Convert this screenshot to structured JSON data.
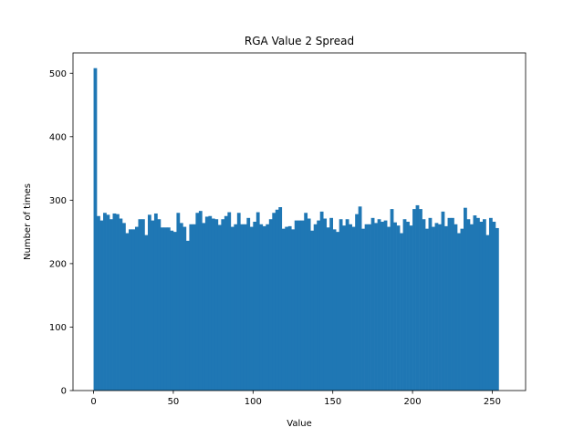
{
  "chart_data": {
    "type": "bar",
    "title": "RGA Value 2 Spread",
    "xlabel": "Value",
    "ylabel": "Number of times",
    "xlim": [
      -12.9,
      270.9
    ],
    "ylim": [
      0,
      532
    ],
    "xticks": [
      0,
      50,
      100,
      150,
      200,
      250
    ],
    "yticks": [
      0,
      100,
      200,
      300,
      400,
      500
    ],
    "grid": false,
    "bar_color": "#1f77b4",
    "bin_start": 0,
    "bin_width": 2,
    "values": [
      508,
      275,
      268,
      280,
      277,
      270,
      279,
      278,
      271,
      264,
      248,
      254,
      254,
      258,
      270,
      270,
      245,
      277,
      268,
      279,
      270,
      257,
      257,
      257,
      252,
      250,
      280,
      264,
      258,
      236,
      262,
      262,
      280,
      283,
      264,
      274,
      275,
      271,
      270,
      261,
      270,
      275,
      281,
      258,
      262,
      280,
      262,
      262,
      272,
      258,
      266,
      281,
      262,
      259,
      262,
      270,
      280,
      285,
      289,
      255,
      258,
      259,
      254,
      268,
      268,
      268,
      280,
      271,
      252,
      262,
      268,
      282,
      271,
      257,
      272,
      254,
      250,
      270,
      260,
      270,
      262,
      258,
      278,
      290,
      255,
      262,
      262,
      272,
      264,
      270,
      266,
      268,
      258,
      286,
      265,
      260,
      248,
      270,
      266,
      260,
      286,
      292,
      286,
      270,
      255,
      272,
      258,
      264,
      262,
      282,
      259,
      272,
      272,
      262,
      248,
      255,
      288,
      270,
      262,
      276,
      272,
      266,
      270,
      245,
      272,
      266,
      256
    ]
  }
}
